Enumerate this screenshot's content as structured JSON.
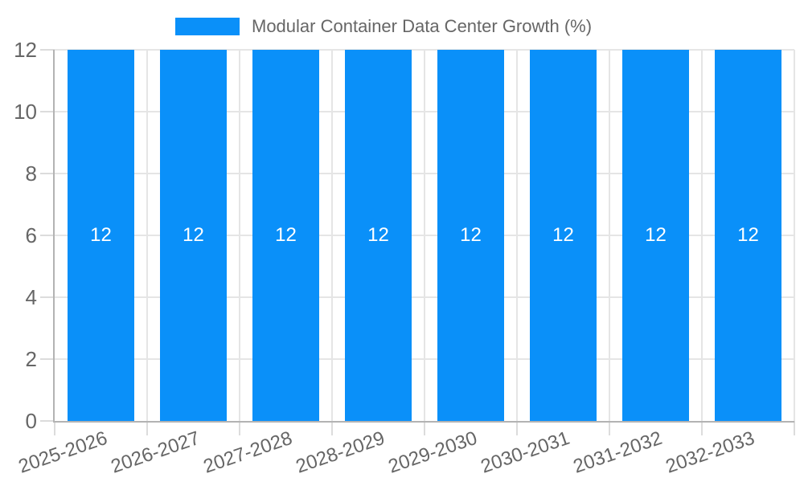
{
  "legend": {
    "label": "Modular Container Data Center Growth (%)",
    "position": "top"
  },
  "chart_data": {
    "type": "bar",
    "title": "Modular Container Data Center Growth (%)",
    "categories": [
      "2025-2026",
      "2026-2027",
      "2027-2028",
      "2028-2029",
      "2029-2030",
      "2030-2031",
      "2031-2032",
      "2032-2033"
    ],
    "values": [
      12,
      12,
      12,
      12,
      12,
      12,
      12,
      12
    ],
    "bar_value_labels": [
      "12",
      "12",
      "12",
      "12",
      "12",
      "12",
      "12",
      "12"
    ],
    "xlabel": "",
    "ylabel": "",
    "ylim": [
      0,
      12
    ],
    "yticks": [
      0,
      2,
      4,
      6,
      8,
      10,
      12
    ],
    "ytick_labels": [
      "0",
      "2",
      "4",
      "6",
      "8",
      "10",
      "12"
    ],
    "grid": true,
    "legend_position": "top",
    "x_label_rotation_deg": -19,
    "colors": {
      "bar": "#0a90f9",
      "bar_value_label": "#ffffff",
      "tick_text": "#666666",
      "legend_text": "#666666",
      "gridline": "#e5e5e5",
      "tick_mark": "#dcdcdc",
      "axis_line": "#b3b3b3",
      "background": "#ffffff"
    }
  }
}
